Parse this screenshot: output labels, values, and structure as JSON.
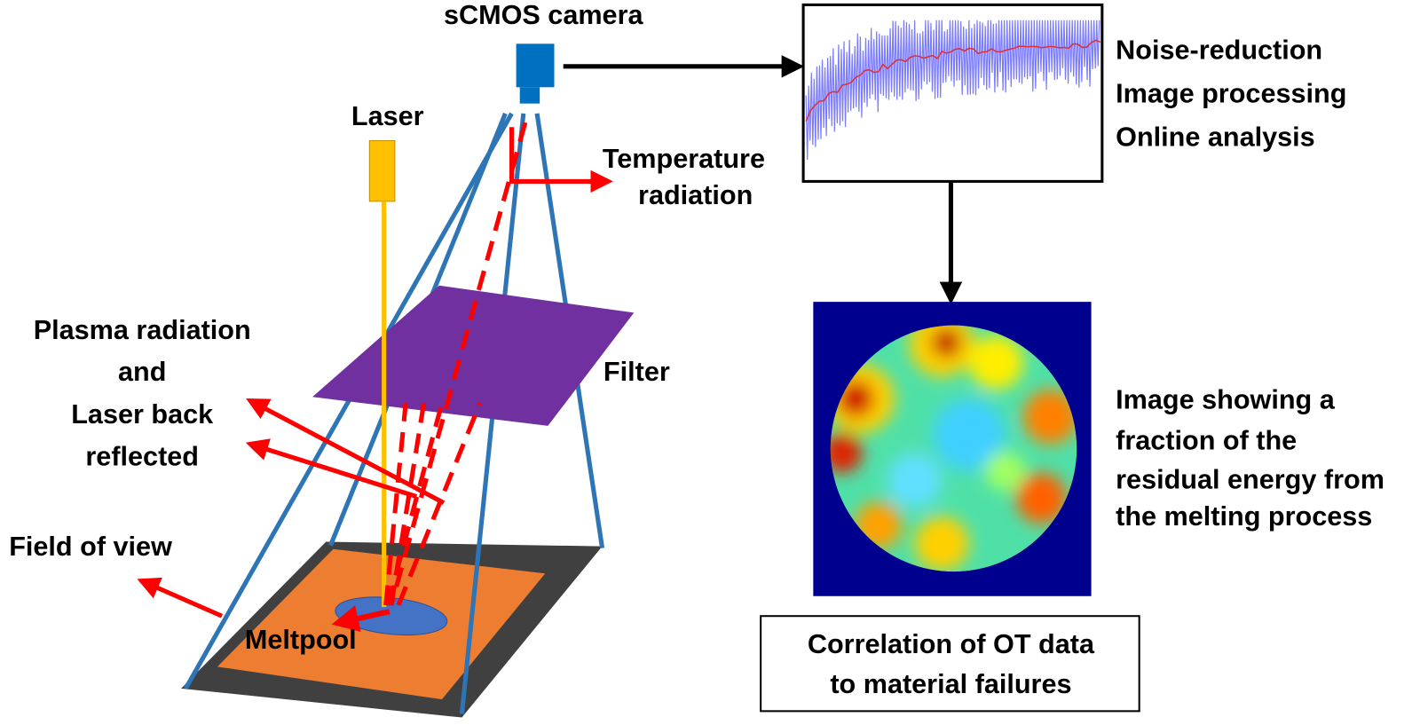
{
  "labels": {
    "camera": "sCMOS camera",
    "laser": "Laser",
    "temperature_radiation": [
      "Temperature",
      "radiation"
    ],
    "plasma_radiation": [
      "Plasma radiation",
      "and",
      "Laser back",
      "reflected"
    ],
    "filter": "Filter",
    "field_of_view": "Field of view",
    "meltpool": "Meltpool",
    "processing_steps": [
      "Noise-reduction",
      "Image processing",
      "Online analysis"
    ],
    "image_caption": [
      "Image showing a",
      "fraction of the",
      "residual energy from",
      "the melting process"
    ],
    "correlation": [
      "Correlation of OT data",
      "to material failures"
    ]
  }
}
